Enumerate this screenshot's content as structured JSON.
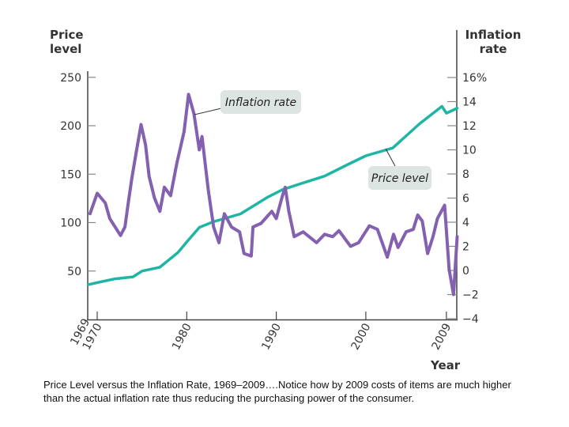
{
  "chart_data": {
    "type": "line",
    "xlabel": "Year",
    "ylabel_left": [
      "Price",
      "level"
    ],
    "ylabel_right": [
      "Inflation",
      "rate"
    ],
    "xlim": [
      1969,
      2010.3
    ],
    "ylim_left": [
      0,
      250
    ],
    "ylim_right": [
      -4,
      16
    ],
    "x_ticks": [
      {
        "value": 1969,
        "label": "1969"
      },
      {
        "value": 1970,
        "label": "1970"
      },
      {
        "value": 1980,
        "label": "1980"
      },
      {
        "value": 1990,
        "label": "1990"
      },
      {
        "value": 2000,
        "label": "2000"
      },
      {
        "value": 2009,
        "label": "2009"
      }
    ],
    "left_ticks": [
      {
        "value": 250,
        "label": "250"
      },
      {
        "value": 200,
        "label": "200"
      },
      {
        "value": 150,
        "label": "150"
      },
      {
        "value": 100,
        "label": "100"
      },
      {
        "value": 50,
        "label": "50"
      }
    ],
    "right_ticks": [
      {
        "value": 16,
        "label": "16%"
      },
      {
        "value": 14,
        "label": "14"
      },
      {
        "value": 12,
        "label": "12"
      },
      {
        "value": 10,
        "label": "10"
      },
      {
        "value": 8,
        "label": "8"
      },
      {
        "value": 6,
        "label": "6"
      },
      {
        "value": 4,
        "label": "4"
      },
      {
        "value": 2,
        "label": "2"
      },
      {
        "value": 0,
        "label": "0"
      },
      {
        "value": -2,
        "label": "−2"
      },
      {
        "value": -4,
        "label": "−4"
      }
    ],
    "grid": false,
    "series": [
      {
        "name": "Price level",
        "axis": "left",
        "color": "#1fb5a4",
        "points": [
          [
            1969,
            36
          ],
          [
            1970,
            38
          ],
          [
            1972,
            42
          ],
          [
            1974,
            44
          ],
          [
            1975,
            50
          ],
          [
            1977,
            54
          ],
          [
            1979,
            69
          ],
          [
            1980,
            80
          ],
          [
            1981.4,
            95
          ],
          [
            1983,
            101
          ],
          [
            1986,
            109
          ],
          [
            1989,
            126
          ],
          [
            1990.7,
            134
          ],
          [
            1993,
            141
          ],
          [
            1995.4,
            148
          ],
          [
            1998,
            160
          ],
          [
            2000,
            169
          ],
          [
            2003,
            177
          ],
          [
            2006,
            202
          ],
          [
            2008.5,
            220
          ],
          [
            2009,
            213
          ],
          [
            2010.2,
            218
          ]
        ]
      },
      {
        "name": "Inflation rate",
        "axis": "right",
        "color": "#8460b0",
        "points": [
          [
            1969.2,
            4.7
          ],
          [
            1970,
            6.4
          ],
          [
            1970.9,
            5.6
          ],
          [
            1971.4,
            4.3
          ],
          [
            1972,
            3.6
          ],
          [
            1972.6,
            2.9
          ],
          [
            1973.1,
            3.6
          ],
          [
            1973.5,
            5.8
          ],
          [
            1973.9,
            7.8
          ],
          [
            1974.4,
            10
          ],
          [
            1974.9,
            12.1
          ],
          [
            1975.4,
            10.4
          ],
          [
            1975.8,
            7.8
          ],
          [
            1976.4,
            6
          ],
          [
            1977,
            4.9
          ],
          [
            1977.5,
            6.9
          ],
          [
            1978.2,
            6.2
          ],
          [
            1978.9,
            8.9
          ],
          [
            1979.7,
            11.5
          ],
          [
            1980.2,
            14.6
          ],
          [
            1980.8,
            13
          ],
          [
            1981.4,
            10
          ],
          [
            1981.7,
            11.1
          ],
          [
            1982.4,
            6.7
          ],
          [
            1983,
            3.6
          ],
          [
            1983.6,
            2.3
          ],
          [
            1984.2,
            4.7
          ],
          [
            1985,
            3.6
          ],
          [
            1985.9,
            3.2
          ],
          [
            1986.4,
            1.4
          ],
          [
            1987.2,
            1.2
          ],
          [
            1987.4,
            3.6
          ],
          [
            1988.3,
            3.9
          ],
          [
            1989.5,
            4.9
          ],
          [
            1990,
            4.3
          ],
          [
            1990.4,
            5.4
          ],
          [
            1990.7,
            6.2
          ],
          [
            1991,
            6.9
          ],
          [
            1991.4,
            4.9
          ],
          [
            1992,
            2.8
          ],
          [
            1993,
            3.2
          ],
          [
            1994.5,
            2.3
          ],
          [
            1995.4,
            3
          ],
          [
            1996.3,
            2.8
          ],
          [
            1997,
            3.3
          ],
          [
            1998.3,
            2
          ],
          [
            1999.2,
            2.3
          ],
          [
            2000.4,
            3.7
          ],
          [
            2001.3,
            3.4
          ],
          [
            2002.4,
            1.1
          ],
          [
            2003.1,
            3
          ],
          [
            2003.6,
            1.9
          ],
          [
            2004.5,
            3.2
          ],
          [
            2005.3,
            3.4
          ],
          [
            2005.8,
            4.6
          ],
          [
            2006.3,
            4.1
          ],
          [
            2006.9,
            1.4
          ],
          [
            2007.5,
            2.8
          ],
          [
            2008,
            4.3
          ],
          [
            2008.8,
            5.4
          ],
          [
            2009.3,
            0.1
          ],
          [
            2009.8,
            -2
          ],
          [
            2010.2,
            2.8
          ]
        ]
      }
    ],
    "annotations": [
      {
        "text": "Inflation rate",
        "series": "Inflation rate"
      },
      {
        "text": "Price level",
        "series": "Price level"
      }
    ]
  },
  "caption": {
    "line1": "Price Level versus the Inflation Rate, 1969–2009….Notice how by 2009 costs of items are much higher",
    "line2": "than the actual inflation rate thus reducing the purchasing power of the consumer."
  },
  "colors": {
    "price": "#1fb5a4",
    "inflation": "#8460b0",
    "callout_bg": "#dde5e3"
  }
}
